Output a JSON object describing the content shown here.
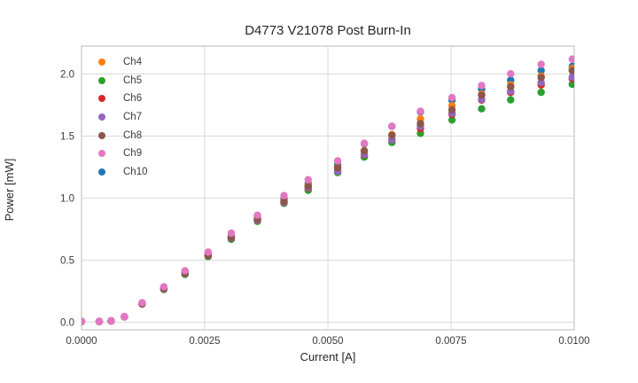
{
  "figure": {
    "title": "D4773 V21078 Post Burn-In",
    "xlabel": "Current [A]",
    "ylabel": "Power [mW]"
  },
  "chart_data": {
    "type": "scatter",
    "title": "D4773 V21078 Post Burn-In",
    "xlabel": "Current [A]",
    "ylabel": "Power [mW]",
    "xlim": [
      0.0,
      0.01
    ],
    "ylim": [
      -0.062,
      2.225
    ],
    "grid": true,
    "legend_position": "upper left",
    "legend_frame": false,
    "marker": {
      "shape": "circle",
      "radius_px": 4.2
    },
    "xticks": {
      "values": [
        0.0,
        0.0025,
        0.005,
        0.0075,
        0.01
      ],
      "labels": [
        "0.0000",
        "0.0025",
        "0.0050",
        "0.0075",
        "0.0100"
      ]
    },
    "yticks": {
      "values": [
        0.0,
        0.5,
        1.0,
        1.5,
        2.0
      ],
      "labels": [
        "0.0",
        "0.5",
        "1.0",
        "1.5",
        "2.0"
      ]
    },
    "x": [
      0.0,
      0.00036,
      0.0006,
      0.00087,
      0.00123,
      0.00167,
      0.0021,
      0.00257,
      0.00304,
      0.00357,
      0.00411,
      0.0046,
      0.0052,
      0.00574,
      0.0063,
      0.00688,
      0.00752,
      0.00812,
      0.00871,
      0.00933,
      0.00996
    ],
    "series": [
      {
        "name": "Ch4",
        "color": "#ff7f0e",
        "values": [
          0.005,
          0.005,
          0.01,
          0.043,
          0.151,
          0.274,
          0.398,
          0.543,
          0.686,
          0.834,
          0.98,
          1.104,
          1.248,
          1.382,
          1.512,
          1.638,
          1.745,
          1.838,
          1.912,
          1.982,
          2.045
        ]
      },
      {
        "name": "Ch5",
        "color": "#2ca02c",
        "values": [
          0.005,
          0.005,
          0.009,
          0.042,
          0.145,
          0.263,
          0.385,
          0.528,
          0.668,
          0.812,
          0.958,
          1.062,
          1.205,
          1.33,
          1.448,
          1.522,
          1.63,
          1.72,
          1.792,
          1.853,
          1.918
        ]
      },
      {
        "name": "Ch6",
        "color": "#d62728",
        "values": [
          0.005,
          0.005,
          0.01,
          0.043,
          0.147,
          0.268,
          0.392,
          0.536,
          0.676,
          0.82,
          0.965,
          1.08,
          1.22,
          1.348,
          1.47,
          1.56,
          1.675,
          1.79,
          1.852,
          1.912,
          1.962
        ]
      },
      {
        "name": "Ch7",
        "color": "#9467bd",
        "values": [
          0.005,
          0.005,
          0.01,
          0.043,
          0.148,
          0.269,
          0.393,
          0.538,
          0.678,
          0.822,
          0.968,
          1.085,
          1.215,
          1.352,
          1.47,
          1.578,
          1.685,
          1.795,
          1.862,
          1.932,
          1.975
        ]
      },
      {
        "name": "Ch8",
        "color": "#8c564b",
        "values": [
          0.005,
          0.005,
          0.01,
          0.043,
          0.15,
          0.272,
          0.396,
          0.54,
          0.682,
          0.83,
          0.975,
          1.095,
          1.245,
          1.38,
          1.505,
          1.6,
          1.712,
          1.83,
          1.898,
          1.972,
          2.028
        ]
      },
      {
        "name": "Ch9",
        "color": "#e377c2",
        "values": [
          0.006,
          0.006,
          0.011,
          0.045,
          0.157,
          0.285,
          0.415,
          0.565,
          0.718,
          0.862,
          1.02,
          1.148,
          1.3,
          1.442,
          1.578,
          1.7,
          1.81,
          1.908,
          2.002,
          2.078,
          2.12
        ]
      },
      {
        "name": "Ch10",
        "color": "#1f77b4",
        "values": [
          0.005,
          0.005,
          0.01,
          0.044,
          0.153,
          0.278,
          0.404,
          0.55,
          0.695,
          0.845,
          0.992,
          1.118,
          1.268,
          1.438,
          1.578,
          1.695,
          1.788,
          1.878,
          1.95,
          2.028,
          2.062
        ]
      }
    ],
    "draw_order": [
      "Ch10",
      "Ch4",
      "Ch5",
      "Ch6",
      "Ch7",
      "Ch8",
      "Ch9"
    ],
    "colors": {
      "grid": "#d9d9d9",
      "spine": "#c4c4c4",
      "tick_text": "#3b3b3b",
      "title_text": "#262626"
    }
  }
}
